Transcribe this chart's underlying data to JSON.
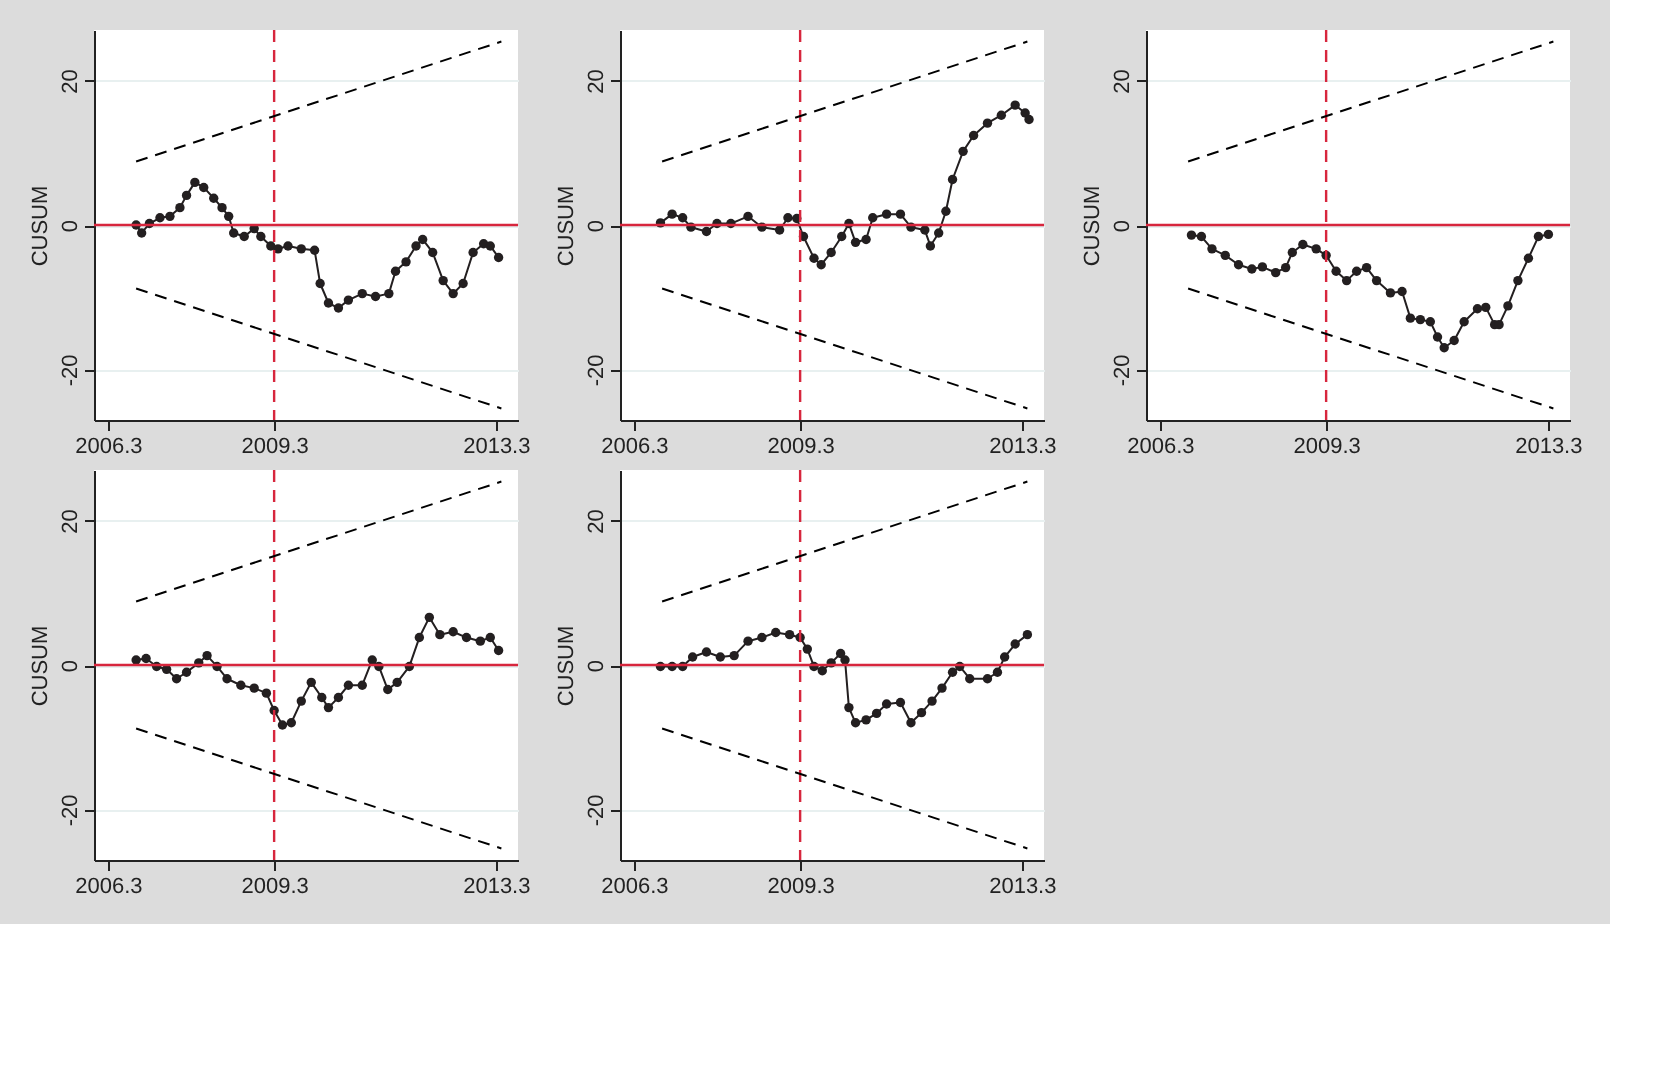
{
  "chart_data": [
    {
      "type": "line",
      "ylabel": "CUSUM",
      "xlim": [
        2006.05,
        2013.7
      ],
      "xticks": [
        2006.3,
        2009.3,
        2013.3
      ],
      "ylim": [
        -27,
        27
      ],
      "yticks": [
        -20,
        0,
        20
      ],
      "grid": "y",
      "marker": "circle",
      "ref_lines": [
        {
          "axis": "y",
          "value": 0,
          "color": "#d7263d",
          "line_style": "solid"
        },
        {
          "axis": "x",
          "value": 2009.3,
          "color": "#d7263d",
          "line_style": "dashed"
        }
      ],
      "series": [
        {
          "color": "#231f20",
          "x": [
            2006.81,
            2006.91,
            2007.05,
            2007.24,
            2007.42,
            2007.6,
            2007.72,
            2007.87,
            2008.03,
            2008.21,
            2008.36,
            2008.48,
            2008.57,
            2008.76,
            2008.94,
            2009.06,
            2009.24,
            2009.37,
            2009.55,
            2009.79,
            2010.03,
            2010.13,
            2010.28,
            2010.46,
            2010.64,
            2010.89,
            2011.13,
            2011.37,
            2011.49,
            2011.68,
            2011.86,
            2011.98,
            2012.16,
            2012.35,
            2012.53,
            2012.71,
            2012.89,
            2013.08,
            2013.2,
            2013.35
          ],
          "values": [
            0,
            -1.1,
            0.2,
            1.0,
            1.2,
            2.4,
            4.1,
            5.9,
            5.2,
            3.7,
            2.4,
            1.2,
            -1.1,
            -1.6,
            -0.5,
            -1.6,
            -2.9,
            -3.3,
            -2.9,
            -3.3,
            -3.5,
            -8.1,
            -10.8,
            -11.5,
            -10.4,
            -9.5,
            -9.9,
            -9.5,
            -6.4,
            -5.1,
            -2.9,
            -2.0,
            -3.8,
            -7.7,
            -9.5,
            -8.1,
            -3.8,
            -2.6,
            -2.9,
            -4.5
          ]
        },
        {
          "type": "line",
          "marker": "none",
          "line_style": "dashed",
          "color": "#000000",
          "x": [
            2006.81,
            2013.4
          ],
          "values": [
            8.8,
            25.4
          ]
        },
        {
          "type": "line",
          "marker": "none",
          "line_style": "dashed",
          "color": "#000000",
          "x": [
            2006.81,
            2013.4
          ],
          "values": [
            -8.8,
            -25.4
          ]
        }
      ]
    },
    {
      "type": "line",
      "ylabel": "CUSUM",
      "xlim": [
        2006.05,
        2013.7
      ],
      "xticks": [
        2006.3,
        2009.3,
        2013.3
      ],
      "ylim": [
        -27,
        27
      ],
      "yticks": [
        -20,
        0,
        20
      ],
      "grid": "y",
      "marker": "circle",
      "ref_lines": [
        {
          "axis": "y",
          "value": 0,
          "color": "#d7263d",
          "line_style": "solid"
        },
        {
          "axis": "x",
          "value": 2009.3,
          "color": "#d7263d",
          "line_style": "dashed"
        }
      ],
      "series": [
        {
          "color": "#231f20",
          "x": [
            2006.78,
            2006.99,
            2007.18,
            2007.33,
            2007.61,
            2007.8,
            2008.05,
            2008.36,
            2008.61,
            2008.93,
            2009.08,
            2009.24,
            2009.36,
            2009.55,
            2009.68,
            2009.86,
            2010.05,
            2010.18,
            2010.3,
            2010.49,
            2010.61,
            2010.86,
            2011.11,
            2011.3,
            2011.55,
            2011.65,
            2011.8,
            2011.93,
            2012.05,
            2012.24,
            2012.43,
            2012.68,
            2012.93,
            2013.18,
            2013.36,
            2013.43
          ],
          "values": [
            0.3,
            1.5,
            1.0,
            -0.3,
            -0.9,
            0.2,
            0.2,
            1.2,
            -0.3,
            -0.7,
            1.0,
            0.9,
            -1.6,
            -4.6,
            -5.5,
            -3.8,
            -1.6,
            0.2,
            -2.4,
            -2.0,
            1.0,
            1.5,
            1.5,
            -0.3,
            -0.7,
            -2.9,
            -1.1,
            1.9,
            6.3,
            10.2,
            12.4,
            14.1,
            15.2,
            16.6,
            15.5,
            14.6
          ]
        },
        {
          "type": "line",
          "marker": "none",
          "line_style": "dashed",
          "color": "#000000",
          "x": [
            2006.81,
            2013.4
          ],
          "values": [
            8.8,
            25.4
          ]
        },
        {
          "type": "line",
          "marker": "none",
          "line_style": "dashed",
          "color": "#000000",
          "x": [
            2006.81,
            2013.4
          ],
          "values": [
            -8.8,
            -25.4
          ]
        }
      ]
    },
    {
      "type": "line",
      "ylabel": "CUSUM",
      "xlim": [
        2006.05,
        2013.7
      ],
      "xticks": [
        2006.3,
        2009.3,
        2013.3
      ],
      "ylim": [
        -27,
        27
      ],
      "yticks": [
        -20,
        0,
        20
      ],
      "grid": "y",
      "marker": "circle",
      "ref_lines": [
        {
          "axis": "y",
          "value": 0,
          "color": "#d7263d",
          "line_style": "solid"
        },
        {
          "axis": "x",
          "value": 2009.3,
          "color": "#d7263d",
          "line_style": "dashed"
        }
      ],
      "series": [
        {
          "color": "#231f20",
          "x": [
            2006.87,
            2007.05,
            2007.24,
            2007.48,
            2007.72,
            2007.96,
            2008.15,
            2008.39,
            2008.57,
            2008.69,
            2008.88,
            2009.12,
            2009.3,
            2009.48,
            2009.67,
            2009.85,
            2010.03,
            2010.21,
            2010.46,
            2010.67,
            2010.82,
            2011.0,
            2011.18,
            2011.31,
            2011.43,
            2011.61,
            2011.79,
            2012.03,
            2012.18,
            2012.34,
            2012.42,
            2012.58,
            2012.76,
            2012.95,
            2013.13,
            2013.31
          ],
          "values": [
            -1.4,
            -1.6,
            -3.3,
            -4.2,
            -5.5,
            -6.1,
            -5.8,
            -6.6,
            -5.9,
            -3.8,
            -2.7,
            -3.3,
            -4.2,
            -6.4,
            -7.7,
            -6.4,
            -5.9,
            -7.7,
            -9.4,
            -9.2,
            -12.9,
            -13.1,
            -13.4,
            -15.5,
            -17.0,
            -16.0,
            -13.4,
            -11.6,
            -11.4,
            -13.8,
            -13.8,
            -11.2,
            -7.7,
            -4.6,
            -1.6,
            -1.3
          ]
        },
        {
          "type": "line",
          "marker": "none",
          "line_style": "dashed",
          "color": "#000000",
          "x": [
            2006.81,
            2013.4
          ],
          "values": [
            8.8,
            25.4
          ]
        },
        {
          "type": "line",
          "marker": "none",
          "line_style": "dashed",
          "color": "#000000",
          "x": [
            2006.81,
            2013.4
          ],
          "values": [
            -8.8,
            -25.4
          ]
        }
      ]
    },
    {
      "type": "line",
      "ylabel": "CUSUM",
      "xlim": [
        2006.05,
        2013.7
      ],
      "xticks": [
        2006.3,
        2009.3,
        2013.3
      ],
      "ylim": [
        -27,
        27
      ],
      "yticks": [
        -20,
        0,
        20
      ],
      "grid": "y",
      "marker": "circle",
      "ref_lines": [
        {
          "axis": "y",
          "value": 0,
          "color": "#d7263d",
          "line_style": "solid"
        },
        {
          "axis": "x",
          "value": 2009.3,
          "color": "#d7263d",
          "line_style": "dashed"
        }
      ],
      "series": [
        {
          "color": "#231f20",
          "x": [
            2006.81,
            2006.99,
            2007.18,
            2007.36,
            2007.54,
            2007.72,
            2007.94,
            2008.09,
            2008.27,
            2008.45,
            2008.7,
            2008.94,
            2009.16,
            2009.3,
            2009.45,
            2009.61,
            2009.79,
            2009.97,
            2010.16,
            2010.28,
            2010.46,
            2010.64,
            2010.89,
            2011.07,
            2011.19,
            2011.35,
            2011.52,
            2011.74,
            2011.92,
            2012.1,
            2012.29,
            2012.53,
            2012.77,
            2013.02,
            2013.2,
            2013.35
          ],
          "values": [
            0.7,
            0.9,
            -0.2,
            -0.6,
            -1.9,
            -1.0,
            0.3,
            1.3,
            -0.2,
            -1.9,
            -2.8,
            -3.2,
            -3.9,
            -6.3,
            -8.3,
            -8.0,
            -5.0,
            -2.4,
            -4.5,
            -5.9,
            -4.5,
            -2.8,
            -2.8,
            0.7,
            -0.2,
            -3.4,
            -2.4,
            -0.2,
            3.8,
            6.6,
            4.2,
            4.6,
            3.8,
            3.3,
            3.8,
            2.0
          ]
        },
        {
          "type": "line",
          "marker": "none",
          "line_style": "dashed",
          "color": "#000000",
          "x": [
            2006.81,
            2013.4
          ],
          "values": [
            8.8,
            25.4
          ]
        },
        {
          "type": "line",
          "marker": "none",
          "line_style": "dashed",
          "color": "#000000",
          "x": [
            2006.81,
            2013.4
          ],
          "values": [
            -8.8,
            -25.4
          ]
        }
      ]
    },
    {
      "type": "line",
      "ylabel": "CUSUM",
      "xlim": [
        2006.05,
        2013.7
      ],
      "xticks": [
        2006.3,
        2009.3,
        2013.3
      ],
      "ylim": [
        -27,
        27
      ],
      "yticks": [
        -20,
        0,
        20
      ],
      "grid": "y",
      "marker": "circle",
      "ref_lines": [
        {
          "axis": "y",
          "value": 0,
          "color": "#d7263d",
          "line_style": "solid"
        },
        {
          "axis": "x",
          "value": 2009.3,
          "color": "#d7263d",
          "line_style": "dashed"
        }
      ],
      "series": [
        {
          "color": "#231f20",
          "x": [
            2006.78,
            2006.99,
            2007.18,
            2007.36,
            2007.61,
            2007.86,
            2008.11,
            2008.36,
            2008.61,
            2008.86,
            2009.11,
            2009.3,
            2009.43,
            2009.55,
            2009.7,
            2009.86,
            2010.03,
            2010.11,
            2010.18,
            2010.3,
            2010.49,
            2010.68,
            2010.86,
            2011.11,
            2011.3,
            2011.49,
            2011.68,
            2011.86,
            2012.05,
            2012.18,
            2012.36,
            2012.68,
            2012.86,
            2012.99,
            2013.18,
            2013.4
          ],
          "values": [
            -0.2,
            -0.2,
            -0.2,
            1.1,
            1.8,
            1.1,
            1.3,
            3.3,
            3.8,
            4.5,
            4.2,
            3.8,
            2.2,
            -0.2,
            -0.8,
            0.3,
            1.6,
            0.7,
            -5.9,
            -8.0,
            -7.6,
            -6.7,
            -5.4,
            -5.2,
            -8.0,
            -6.6,
            -5.0,
            -3.2,
            -1.0,
            -0.2,
            -1.9,
            -1.9,
            -1.0,
            1.1,
            2.9,
            4.2
          ]
        },
        {
          "type": "line",
          "marker": "none",
          "line_style": "dashed",
          "color": "#000000",
          "x": [
            2006.81,
            2013.4
          ],
          "values": [
            8.8,
            25.4
          ]
        },
        {
          "type": "line",
          "marker": "none",
          "line_style": "dashed",
          "color": "#000000",
          "x": [
            2006.81,
            2013.4
          ],
          "values": [
            -8.8,
            -25.4
          ]
        }
      ]
    }
  ]
}
